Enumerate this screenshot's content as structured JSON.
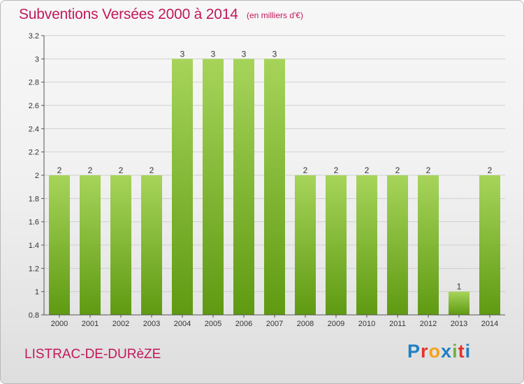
{
  "header": {
    "title": "Subventions Versées 2000 à 2014",
    "unit": "(en milliers d'€)"
  },
  "footer": {
    "commune": "LISTRAC-DE-DURèZE",
    "logo_letters": [
      "P",
      "r",
      "o",
      "x",
      "i",
      "t",
      "i"
    ],
    "logo_colors": [
      "#1f7fc4",
      "#e5322d",
      "#f3a21b",
      "#1f7fc4",
      "#6cb33e",
      "#e5322d",
      "#1f7fc4"
    ]
  },
  "chart_data": {
    "type": "bar",
    "categories": [
      "2000",
      "2001",
      "2002",
      "2003",
      "2004",
      "2005",
      "2006",
      "2007",
      "2008",
      "2009",
      "2010",
      "2011",
      "2012",
      "2013",
      "2014"
    ],
    "values": [
      2,
      2,
      2,
      2,
      3,
      3,
      3,
      3,
      2,
      2,
      2,
      2,
      2,
      1,
      2
    ],
    "bar_labels": [
      "2",
      "2",
      "2",
      "2",
      "3",
      "3",
      "3",
      "3",
      "2",
      "2",
      "2",
      "2",
      "2",
      "1",
      "2"
    ],
    "ylim": [
      0.8,
      3.2
    ],
    "yticks": [
      "0.8",
      "1",
      "1.2",
      "1.4",
      "1.6",
      "1.8",
      "2",
      "2.2",
      "2.4",
      "2.6",
      "2.8",
      "3",
      "3.2"
    ],
    "grid": true,
    "colors": {
      "bar_top": "#a6d45a",
      "bar_bottom": "#5f9a12",
      "grid": "#cfcfcf",
      "axis": "#555555",
      "text": "#333333"
    }
  }
}
